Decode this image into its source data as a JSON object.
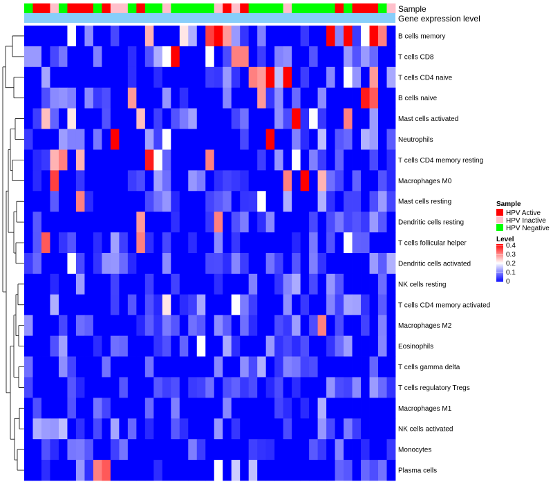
{
  "chart_data": {
    "type": "heatmap",
    "annotation_tracks": {
      "sample": {
        "label": "Sample",
        "values": [
          "HPV Negative",
          "HPV Active",
          "HPV Active",
          "HPV Inactive",
          "HPV Negative",
          "HPV Active",
          "HPV Active",
          "HPV Active",
          "HPV Negative",
          "HPV Active",
          "HPV Inactive",
          "HPV Inactive",
          "HPV Negative",
          "HPV Active",
          "HPV Negative",
          "HPV Negative",
          "HPV Inactive",
          "HPV Negative",
          "HPV Negative",
          "HPV Negative",
          "HPV Negative",
          "HPV Negative",
          "HPV Inactive",
          "HPV Active",
          "HPV Inactive",
          "HPV Active",
          "HPV Negative",
          "HPV Negative",
          "HPV Negative",
          "HPV Negative",
          "HPV Inactive",
          "HPV Negative",
          "HPV Negative",
          "HPV Negative",
          "HPV Negative",
          "HPV Negative",
          "HPV Active",
          "HPV Negative",
          "HPV Active",
          "HPV Active",
          "HPV Active",
          "HPV Negative",
          "HPV Inactive"
        ]
      },
      "gene_expression": {
        "label": "Gene expression level"
      }
    },
    "rows": [
      "B cells memory",
      "T cells CD8",
      "T cells CD4 naive",
      "B cells naive",
      "Mast cells activated",
      "Neutrophils",
      "T cells CD4 memory resting",
      "Macrophages M0",
      "Mast cells resting",
      "Dendritic cells resting",
      "T cells follicular helper",
      "Dendritic cells activated",
      "NK cells resting",
      "T cells CD4 memory activated",
      "Macrophages M2",
      "Eosinophils",
      "T cells gamma delta",
      "T cells regulatory  Tregs",
      "Macrophages M1",
      "NK cells activated",
      "Monocytes",
      "Plasma cells"
    ],
    "n_cols": 43,
    "seed": 7,
    "hotspots": [
      [
        0,
        5,
        0.2
      ],
      [
        0,
        14,
        0.26
      ],
      [
        0,
        18,
        0.22
      ],
      [
        0,
        21,
        0.35
      ],
      [
        0,
        22,
        0.4
      ],
      [
        0,
        23,
        0.28
      ],
      [
        0,
        24,
        0.12
      ],
      [
        0,
        35,
        0.4
      ],
      [
        0,
        37,
        0.4
      ],
      [
        0,
        39,
        0.2
      ],
      [
        0,
        40,
        0.4
      ],
      [
        0,
        41,
        0.3
      ],
      [
        1,
        0,
        0.12
      ],
      [
        1,
        1,
        0.12
      ],
      [
        1,
        16,
        0.2
      ],
      [
        1,
        17,
        0.4
      ],
      [
        1,
        21,
        0.2
      ],
      [
        1,
        24,
        0.3
      ],
      [
        1,
        25,
        0.3
      ],
      [
        1,
        37,
        0.12
      ],
      [
        1,
        39,
        0.12
      ],
      [
        2,
        26,
        0.3
      ],
      [
        2,
        27,
        0.28
      ],
      [
        2,
        28,
        0.4
      ],
      [
        2,
        29,
        0.15
      ],
      [
        2,
        30,
        0.4
      ],
      [
        2,
        37,
        0.2
      ],
      [
        2,
        40,
        0.28
      ],
      [
        3,
        12,
        0.28
      ],
      [
        3,
        27,
        0.28
      ],
      [
        3,
        39,
        0.38
      ],
      [
        3,
        40,
        0.33
      ],
      [
        4,
        2,
        0.25
      ],
      [
        4,
        5,
        0.22
      ],
      [
        4,
        13,
        0.25
      ],
      [
        4,
        31,
        0.4
      ],
      [
        4,
        33,
        0.2
      ],
      [
        4,
        37,
        0.3
      ],
      [
        5,
        10,
        0.4
      ],
      [
        5,
        16,
        0.2
      ],
      [
        5,
        28,
        0.4
      ],
      [
        5,
        31,
        0.1
      ],
      [
        5,
        34,
        0.15
      ],
      [
        6,
        3,
        0.26
      ],
      [
        6,
        4,
        0.3
      ],
      [
        6,
        6,
        0.26
      ],
      [
        6,
        14,
        0.38
      ],
      [
        6,
        15,
        0.2
      ],
      [
        6,
        21,
        0.3
      ],
      [
        6,
        31,
        0.2
      ],
      [
        6,
        33,
        0.1
      ],
      [
        7,
        3,
        0.35
      ],
      [
        7,
        30,
        0.3
      ],
      [
        7,
        32,
        0.4
      ],
      [
        7,
        34,
        0.26
      ],
      [
        8,
        6,
        0.3
      ],
      [
        8,
        27,
        0.2
      ],
      [
        9,
        13,
        0.28
      ],
      [
        9,
        22,
        0.3
      ],
      [
        10,
        2,
        0.33
      ],
      [
        10,
        13,
        0.3
      ],
      [
        10,
        37,
        0.2
      ],
      [
        11,
        5,
        0.2
      ],
      [
        13,
        16,
        0.22
      ],
      [
        13,
        24,
        0.2
      ],
      [
        14,
        34,
        0.3
      ],
      [
        15,
        20,
        0.2
      ],
      [
        19,
        4,
        0.15
      ],
      [
        21,
        8,
        0.3
      ],
      [
        21,
        9,
        0.33
      ],
      [
        21,
        22,
        0.2
      ],
      [
        21,
        24,
        0.16
      ],
      [
        21,
        26,
        0.15
      ]
    ],
    "legend": {
      "sample_title": "Sample",
      "sample_entries": [
        {
          "label": "HPV Active",
          "color": "#ff0000"
        },
        {
          "label": "HPV Inactive",
          "color": "#ffc0cb"
        },
        {
          "label": "HPV Negative",
          "color": "#00ff00"
        }
      ],
      "level_title": "Level",
      "level_ticks": [
        "0.4",
        "0.3",
        "0.2",
        "0.1",
        "0"
      ],
      "level_range": [
        0,
        0.4
      ]
    },
    "colors": {
      "low": "#0000ff",
      "mid": "#ffffff",
      "high": "#ff0000",
      "gene_bar": "#87cefa"
    }
  }
}
